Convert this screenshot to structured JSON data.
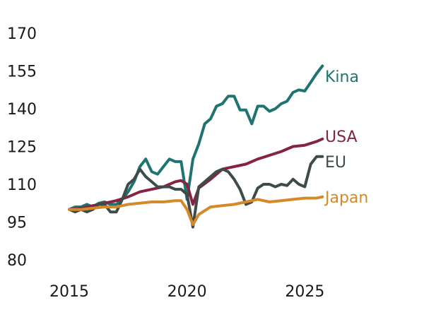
{
  "chart_data": {
    "type": "line",
    "title": "",
    "xlabel": "",
    "ylabel": "",
    "xlim": [
      2015,
      2025.5
    ],
    "ylim": [
      80,
      170
    ],
    "y_ticks": [
      "170",
      "155",
      "140",
      "125",
      "110",
      "95",
      "80"
    ],
    "x_ticks": [
      "2015",
      "2020",
      "2025"
    ],
    "grid": false,
    "legend": "direct labels at line ends (right)",
    "series": [
      {
        "name": "Kina",
        "color": "#1d7470",
        "points": [
          [
            2015.0,
            100
          ],
          [
            2015.25,
            101
          ],
          [
            2015.5,
            101
          ],
          [
            2015.75,
            102
          ],
          [
            2016.0,
            101
          ],
          [
            2016.25,
            102.5
          ],
          [
            2016.5,
            103
          ],
          [
            2016.75,
            102
          ],
          [
            2017.0,
            102
          ],
          [
            2017.25,
            104
          ],
          [
            2017.5,
            107
          ],
          [
            2017.75,
            111
          ],
          [
            2018.0,
            117
          ],
          [
            2018.25,
            120
          ],
          [
            2018.5,
            115
          ],
          [
            2018.75,
            114
          ],
          [
            2019.0,
            117
          ],
          [
            2019.25,
            120
          ],
          [
            2019.5,
            119
          ],
          [
            2019.75,
            119
          ],
          [
            2020.0,
            104
          ],
          [
            2020.25,
            120
          ],
          [
            2020.5,
            126
          ],
          [
            2020.75,
            134
          ],
          [
            2021.0,
            136
          ],
          [
            2021.25,
            141
          ],
          [
            2021.5,
            142
          ],
          [
            2021.75,
            145
          ],
          [
            2022.0,
            145
          ],
          [
            2022.25,
            139.5
          ],
          [
            2022.5,
            139.5
          ],
          [
            2022.75,
            134
          ],
          [
            2023.0,
            141
          ],
          [
            2023.25,
            141
          ],
          [
            2023.5,
            139
          ],
          [
            2023.75,
            140
          ],
          [
            2024.0,
            142
          ],
          [
            2024.25,
            143
          ],
          [
            2024.5,
            146.5
          ],
          [
            2024.75,
            147.5
          ],
          [
            2025.0,
            147
          ],
          [
            2025.25,
            150.5
          ],
          [
            2025.5,
            154
          ],
          [
            2025.75,
            157
          ]
        ]
      },
      {
        "name": "USA",
        "color": "#852440",
        "points": [
          [
            2015.0,
            100
          ],
          [
            2015.5,
            100.5
          ],
          [
            2016.0,
            101.5
          ],
          [
            2016.5,
            102.5
          ],
          [
            2017.0,
            103.5
          ],
          [
            2017.5,
            105
          ],
          [
            2018.0,
            107
          ],
          [
            2018.5,
            108
          ],
          [
            2019.0,
            109
          ],
          [
            2019.5,
            111
          ],
          [
            2019.75,
            111.5
          ],
          [
            2020.0,
            110
          ],
          [
            2020.25,
            102
          ],
          [
            2020.5,
            108.5
          ],
          [
            2021.0,
            112
          ],
          [
            2021.5,
            116
          ],
          [
            2022.0,
            117
          ],
          [
            2022.5,
            118
          ],
          [
            2023.0,
            120
          ],
          [
            2023.5,
            121.5
          ],
          [
            2024.0,
            123
          ],
          [
            2024.5,
            125
          ],
          [
            2025.0,
            125.5
          ],
          [
            2025.5,
            127
          ],
          [
            2025.75,
            128
          ]
        ]
      },
      {
        "name": "EU",
        "color": "#3d4b4b",
        "points": [
          [
            2015.0,
            100
          ],
          [
            2015.25,
            99
          ],
          [
            2015.5,
            100
          ],
          [
            2015.75,
            99
          ],
          [
            2016.0,
            100
          ],
          [
            2016.25,
            102
          ],
          [
            2016.5,
            102
          ],
          [
            2016.75,
            99
          ],
          [
            2017.0,
            99
          ],
          [
            2017.25,
            104
          ],
          [
            2017.5,
            110
          ],
          [
            2017.75,
            112
          ],
          [
            2018.0,
            116
          ],
          [
            2018.25,
            113
          ],
          [
            2018.5,
            111
          ],
          [
            2018.75,
            109
          ],
          [
            2019.0,
            109
          ],
          [
            2019.25,
            109
          ],
          [
            2019.5,
            108
          ],
          [
            2019.75,
            108
          ],
          [
            2020.0,
            106
          ],
          [
            2020.25,
            93
          ],
          [
            2020.5,
            109
          ],
          [
            2020.75,
            111
          ],
          [
            2021.0,
            113
          ],
          [
            2021.25,
            115
          ],
          [
            2021.5,
            116
          ],
          [
            2021.75,
            115
          ],
          [
            2022.0,
            112
          ],
          [
            2022.25,
            108
          ],
          [
            2022.5,
            102
          ],
          [
            2022.75,
            103
          ],
          [
            2023.0,
            108.5
          ],
          [
            2023.25,
            110
          ],
          [
            2023.5,
            110
          ],
          [
            2023.75,
            109
          ],
          [
            2024.0,
            110
          ],
          [
            2024.25,
            109.5
          ],
          [
            2024.5,
            112
          ],
          [
            2024.75,
            110
          ],
          [
            2025.0,
            109
          ],
          [
            2025.25,
            118
          ],
          [
            2025.5,
            121
          ],
          [
            2025.75,
            121
          ]
        ]
      },
      {
        "name": "Japan",
        "color": "#d4892a",
        "points": [
          [
            2015.0,
            100
          ],
          [
            2015.5,
            100
          ],
          [
            2016.0,
            100.5
          ],
          [
            2016.5,
            101
          ],
          [
            2017.0,
            101
          ],
          [
            2017.5,
            102
          ],
          [
            2018.0,
            102.5
          ],
          [
            2018.5,
            103
          ],
          [
            2019.0,
            103
          ],
          [
            2019.5,
            103.5
          ],
          [
            2019.75,
            103.5
          ],
          [
            2020.0,
            100
          ],
          [
            2020.25,
            94
          ],
          [
            2020.5,
            98
          ],
          [
            2021.0,
            101
          ],
          [
            2021.5,
            101.5
          ],
          [
            2022.0,
            102
          ],
          [
            2022.5,
            103
          ],
          [
            2023.0,
            104
          ],
          [
            2023.5,
            103
          ],
          [
            2024.0,
            103.5
          ],
          [
            2024.5,
            104
          ],
          [
            2025.0,
            104.5
          ],
          [
            2025.5,
            104.5
          ],
          [
            2025.75,
            105
          ]
        ]
      }
    ]
  }
}
